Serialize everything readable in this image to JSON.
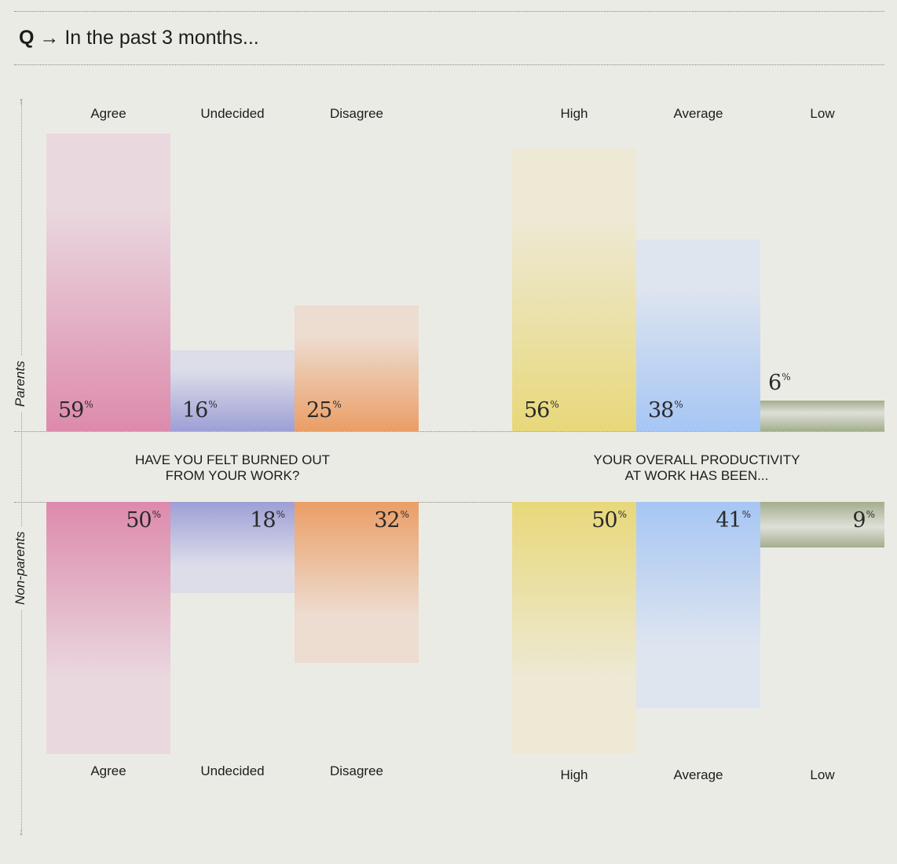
{
  "question": {
    "prefix": "Q",
    "arrow": "→",
    "text": "In the past 3 months..."
  },
  "groups": {
    "top": "Parents",
    "bottom": "Non-parents"
  },
  "chart_data": [
    {
      "type": "bar",
      "title": "HAVE YOU FELT BURNED OUT FROM YOUR WORK?",
      "title_lines": [
        "HAVE YOU FELT BURNED OUT",
        "FROM YOUR WORK?"
      ],
      "categories": [
        "Agree",
        "Undecided",
        "Disagree"
      ],
      "series": [
        {
          "name": "Parents",
          "values": [
            59,
            16,
            25
          ]
        },
        {
          "name": "Non-parents",
          "values": [
            50,
            18,
            32
          ]
        }
      ],
      "unit": "%",
      "colors": [
        "#dd8aac",
        "#9d9fd6",
        "#eb9e66"
      ]
    },
    {
      "type": "bar",
      "title": "YOUR OVERALL PRODUCTIVITY AT WORK HAS BEEN...",
      "title_lines": [
        "YOUR OVERALL PRODUCTIVITY",
        "AT WORK HAS BEEN..."
      ],
      "categories": [
        "High",
        "Average",
        "Low"
      ],
      "series": [
        {
          "name": "Parents",
          "values": [
            56,
            38,
            6
          ]
        },
        {
          "name": "Non-parents",
          "values": [
            50,
            41,
            9
          ]
        }
      ],
      "unit": "%",
      "colors": [
        "#e8d87a",
        "#a6c6f4",
        "#a3ae8c"
      ]
    }
  ]
}
